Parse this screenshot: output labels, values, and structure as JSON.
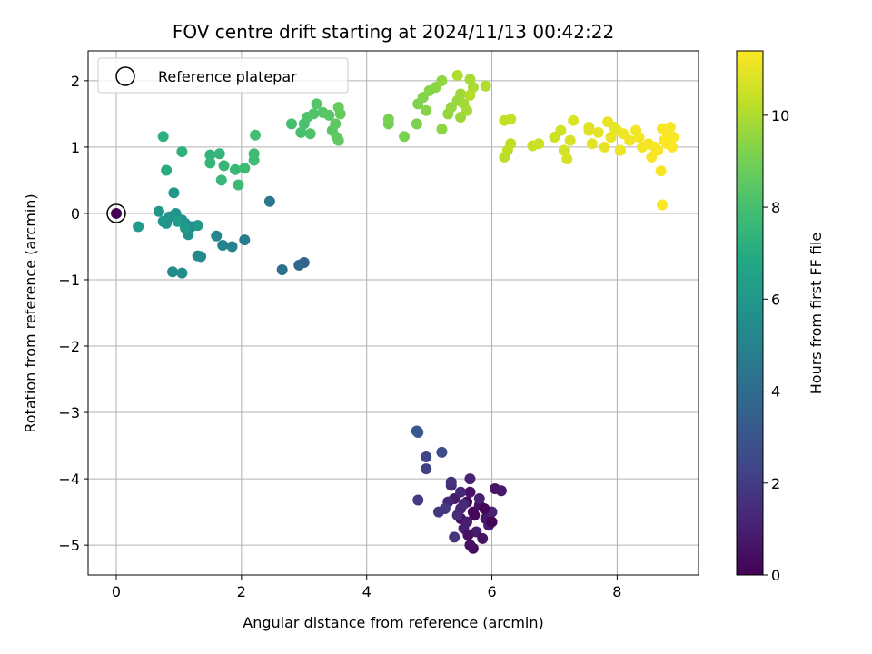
{
  "chart_data": {
    "type": "scatter",
    "title": "FOV centre drift starting at 2024/11/13 00:42:22",
    "xlabel": "Angular distance from reference (arcmin)",
    "ylabel": "Rotation from reference (arcmin)",
    "colorbar_label": "Hours from first FF file",
    "xlim": [
      -0.45,
      9.3
    ],
    "ylim": [
      -5.45,
      2.45
    ],
    "xticks": [
      0,
      2,
      4,
      6,
      8
    ],
    "yticks": [
      -5,
      -4,
      -3,
      -2,
      -1,
      0,
      1,
      2
    ],
    "colorbar_range": [
      0,
      11.4
    ],
    "colorbar_ticks": [
      0,
      2,
      4,
      6,
      8,
      10
    ],
    "colormap": "viridis",
    "grid": true,
    "legend": {
      "placement": "upper-left",
      "entries": [
        {
          "label": "Reference platepar",
          "marker": "open-circle"
        }
      ]
    },
    "reference_point": {
      "x": 0,
      "y": 0,
      "t": 0
    },
    "points": [
      {
        "x": 5.6,
        "y": -4.35,
        "t": 0.2
      },
      {
        "x": 5.7,
        "y": -4.5,
        "t": 0.3
      },
      {
        "x": 5.5,
        "y": -4.6,
        "t": 0.4
      },
      {
        "x": 5.8,
        "y": -4.4,
        "t": 0.5
      },
      {
        "x": 5.65,
        "y": -4.2,
        "t": 0.6
      },
      {
        "x": 5.9,
        "y": -4.6,
        "t": 0.7
      },
      {
        "x": 5.4,
        "y": -4.3,
        "t": 0.8
      },
      {
        "x": 5.75,
        "y": -4.8,
        "t": 0.9
      },
      {
        "x": 5.55,
        "y": -4.75,
        "t": 1.0
      },
      {
        "x": 6.0,
        "y": -4.5,
        "t": 1.1
      },
      {
        "x": 5.7,
        "y": -5.05,
        "t": 0.35
      },
      {
        "x": 5.65,
        "y": -5.0,
        "t": 0.45
      },
      {
        "x": 5.85,
        "y": -4.9,
        "t": 0.55
      },
      {
        "x": 5.5,
        "y": -4.45,
        "t": 1.2
      },
      {
        "x": 5.3,
        "y": -4.35,
        "t": 1.3
      },
      {
        "x": 5.35,
        "y": -4.1,
        "t": 1.4
      },
      {
        "x": 5.45,
        "y": -4.55,
        "t": 1.5
      },
      {
        "x": 6.05,
        "y": -4.15,
        "t": 0.65
      },
      {
        "x": 6.15,
        "y": -4.18,
        "t": 0.75
      },
      {
        "x": 5.95,
        "y": -4.7,
        "t": 0.85
      },
      {
        "x": 5.6,
        "y": -4.65,
        "t": 0.95
      },
      {
        "x": 5.8,
        "y": -4.3,
        "t": 1.05
      },
      {
        "x": 5.35,
        "y": -4.05,
        "t": 1.6
      },
      {
        "x": 5.4,
        "y": -4.88,
        "t": 1.7
      },
      {
        "x": 5.15,
        "y": -4.5,
        "t": 1.8
      },
      {
        "x": 5.25,
        "y": -4.45,
        "t": 1.9
      },
      {
        "x": 5.65,
        "y": -4.0,
        "t": 1.15
      },
      {
        "x": 5.5,
        "y": -4.2,
        "t": 1.25
      },
      {
        "x": 5.55,
        "y": -4.38,
        "t": 1.35
      },
      {
        "x": 5.72,
        "y": -4.55,
        "t": 0.25
      },
      {
        "x": 5.88,
        "y": -4.45,
        "t": 0.15
      },
      {
        "x": 6.0,
        "y": -4.65,
        "t": 0.1
      },
      {
        "x": 5.62,
        "y": -4.85,
        "t": 0.5
      },
      {
        "x": 4.82,
        "y": -4.32,
        "t": 2.0
      },
      {
        "x": 4.95,
        "y": -3.85,
        "t": 2.2
      },
      {
        "x": 4.95,
        "y": -3.67,
        "t": 2.4
      },
      {
        "x": 5.2,
        "y": -3.6,
        "t": 2.6
      },
      {
        "x": 4.8,
        "y": -3.28,
        "t": 3.0
      },
      {
        "x": 4.82,
        "y": -3.3,
        "t": 3.2
      },
      {
        "x": 3.0,
        "y": -0.74,
        "t": 3.6
      },
      {
        "x": 2.92,
        "y": -0.78,
        "t": 3.8
      },
      {
        "x": 2.65,
        "y": -0.85,
        "t": 4.2
      },
      {
        "x": 2.45,
        "y": 0.18,
        "t": 4.5
      },
      {
        "x": 2.05,
        "y": -0.4,
        "t": 4.8
      },
      {
        "x": 1.85,
        "y": -0.5,
        "t": 5.0
      },
      {
        "x": 1.7,
        "y": -0.48,
        "t": 5.1
      },
      {
        "x": 1.6,
        "y": -0.34,
        "t": 5.2
      },
      {
        "x": 1.35,
        "y": -0.65,
        "t": 5.3
      },
      {
        "x": 1.3,
        "y": -0.64,
        "t": 5.4
      },
      {
        "x": 1.05,
        "y": -0.9,
        "t": 5.5
      },
      {
        "x": 0.9,
        "y": -0.88,
        "t": 5.55
      },
      {
        "x": 1.2,
        "y": -0.2,
        "t": 5.6
      },
      {
        "x": 1.15,
        "y": -0.32,
        "t": 5.65
      },
      {
        "x": 1.1,
        "y": -0.15,
        "t": 5.7
      },
      {
        "x": 1.05,
        "y": -0.1,
        "t": 5.75
      },
      {
        "x": 0.95,
        "y": 0.0,
        "t": 5.8
      },
      {
        "x": 0.85,
        "y": -0.05,
        "t": 5.85
      },
      {
        "x": 0.8,
        "y": -0.15,
        "t": 5.9
      },
      {
        "x": 0.75,
        "y": -0.12,
        "t": 5.95
      },
      {
        "x": 0.68,
        "y": 0.03,
        "t": 6.0
      },
      {
        "x": 1.3,
        "y": -0.18,
        "t": 6.05
      },
      {
        "x": 0.92,
        "y": 0.31,
        "t": 6.1
      },
      {
        "x": 0.35,
        "y": -0.2,
        "t": 6.15
      },
      {
        "x": 1.1,
        "y": -0.22,
        "t": 6.2
      },
      {
        "x": 0.98,
        "y": -0.12,
        "t": 6.25
      },
      {
        "x": 0.8,
        "y": 0.65,
        "t": 7.0
      },
      {
        "x": 0.75,
        "y": 1.16,
        "t": 7.2
      },
      {
        "x": 1.05,
        "y": 0.93,
        "t": 7.3
      },
      {
        "x": 1.5,
        "y": 0.88,
        "t": 7.4
      },
      {
        "x": 1.65,
        "y": 0.9,
        "t": 7.45
      },
      {
        "x": 1.5,
        "y": 0.76,
        "t": 7.5
      },
      {
        "x": 1.72,
        "y": 0.72,
        "t": 7.55
      },
      {
        "x": 1.68,
        "y": 0.5,
        "t": 7.6
      },
      {
        "x": 1.9,
        "y": 0.66,
        "t": 7.65
      },
      {
        "x": 1.95,
        "y": 0.43,
        "t": 7.7
      },
      {
        "x": 2.05,
        "y": 0.68,
        "t": 7.75
      },
      {
        "x": 2.2,
        "y": 0.8,
        "t": 7.8
      },
      {
        "x": 2.2,
        "y": 0.9,
        "t": 7.85
      },
      {
        "x": 2.22,
        "y": 1.18,
        "t": 7.9
      },
      {
        "x": 2.8,
        "y": 1.35,
        "t": 8.0
      },
      {
        "x": 2.95,
        "y": 1.22,
        "t": 8.05
      },
      {
        "x": 3.0,
        "y": 1.35,
        "t": 8.1
      },
      {
        "x": 3.05,
        "y": 1.45,
        "t": 8.15
      },
      {
        "x": 3.1,
        "y": 1.2,
        "t": 8.2
      },
      {
        "x": 3.15,
        "y": 1.5,
        "t": 8.25
      },
      {
        "x": 3.2,
        "y": 1.65,
        "t": 8.3
      },
      {
        "x": 3.3,
        "y": 1.52,
        "t": 8.35
      },
      {
        "x": 3.4,
        "y": 1.48,
        "t": 8.4
      },
      {
        "x": 3.45,
        "y": 1.25,
        "t": 8.45
      },
      {
        "x": 3.5,
        "y": 1.35,
        "t": 8.5
      },
      {
        "x": 3.52,
        "y": 1.15,
        "t": 8.55
      },
      {
        "x": 3.55,
        "y": 1.1,
        "t": 8.6
      },
      {
        "x": 3.58,
        "y": 1.5,
        "t": 8.65
      },
      {
        "x": 3.55,
        "y": 1.6,
        "t": 8.7
      },
      {
        "x": 4.35,
        "y": 1.35,
        "t": 9.0
      },
      {
        "x": 4.35,
        "y": 1.42,
        "t": 9.05
      },
      {
        "x": 4.6,
        "y": 1.16,
        "t": 9.1
      },
      {
        "x": 4.8,
        "y": 1.35,
        "t": 9.15
      },
      {
        "x": 4.82,
        "y": 1.65,
        "t": 9.2
      },
      {
        "x": 4.9,
        "y": 1.75,
        "t": 9.25
      },
      {
        "x": 4.95,
        "y": 1.55,
        "t": 9.3
      },
      {
        "x": 5.0,
        "y": 1.85,
        "t": 9.35
      },
      {
        "x": 5.1,
        "y": 1.9,
        "t": 9.4
      },
      {
        "x": 5.2,
        "y": 1.27,
        "t": 9.45
      },
      {
        "x": 5.2,
        "y": 2.0,
        "t": 9.5
      },
      {
        "x": 5.3,
        "y": 1.5,
        "t": 9.55
      },
      {
        "x": 5.35,
        "y": 1.6,
        "t": 9.6
      },
      {
        "x": 5.45,
        "y": 1.7,
        "t": 9.65
      },
      {
        "x": 5.5,
        "y": 1.45,
        "t": 9.7
      },
      {
        "x": 5.5,
        "y": 1.8,
        "t": 9.75
      },
      {
        "x": 5.55,
        "y": 1.65,
        "t": 9.8
      },
      {
        "x": 5.6,
        "y": 1.55,
        "t": 9.85
      },
      {
        "x": 5.65,
        "y": 2.02,
        "t": 9.9
      },
      {
        "x": 5.7,
        "y": 1.9,
        "t": 9.95
      },
      {
        "x": 5.45,
        "y": 2.08,
        "t": 10.0
      },
      {
        "x": 5.9,
        "y": 1.92,
        "t": 10.05
      },
      {
        "x": 5.65,
        "y": 1.78,
        "t": 10.1
      },
      {
        "x": 6.2,
        "y": 0.85,
        "t": 10.2
      },
      {
        "x": 6.25,
        "y": 0.95,
        "t": 10.25
      },
      {
        "x": 6.3,
        "y": 1.05,
        "t": 10.3
      },
      {
        "x": 6.2,
        "y": 1.4,
        "t": 10.35
      },
      {
        "x": 6.3,
        "y": 1.42,
        "t": 10.4
      },
      {
        "x": 6.65,
        "y": 1.02,
        "t": 10.45
      },
      {
        "x": 6.75,
        "y": 1.05,
        "t": 10.5
      },
      {
        "x": 7.0,
        "y": 1.15,
        "t": 10.55
      },
      {
        "x": 7.1,
        "y": 1.25,
        "t": 10.6
      },
      {
        "x": 7.15,
        "y": 0.95,
        "t": 10.65
      },
      {
        "x": 7.2,
        "y": 0.82,
        "t": 10.7
      },
      {
        "x": 7.25,
        "y": 1.1,
        "t": 10.75
      },
      {
        "x": 7.3,
        "y": 1.4,
        "t": 10.8
      },
      {
        "x": 7.55,
        "y": 1.3,
        "t": 10.85
      },
      {
        "x": 7.6,
        "y": 1.05,
        "t": 10.9
      },
      {
        "x": 7.7,
        "y": 1.22,
        "t": 10.95
      },
      {
        "x": 7.8,
        "y": 1.0,
        "t": 11.0
      },
      {
        "x": 7.85,
        "y": 1.38,
        "t": 11.02
      },
      {
        "x": 7.9,
        "y": 1.15,
        "t": 11.05
      },
      {
        "x": 8.0,
        "y": 1.25,
        "t": 11.08
      },
      {
        "x": 8.05,
        "y": 0.95,
        "t": 11.1
      },
      {
        "x": 8.1,
        "y": 1.2,
        "t": 11.12
      },
      {
        "x": 8.2,
        "y": 1.1,
        "t": 11.15
      },
      {
        "x": 8.3,
        "y": 1.25,
        "t": 11.18
      },
      {
        "x": 8.35,
        "y": 1.15,
        "t": 11.2
      },
      {
        "x": 8.4,
        "y": 1.0,
        "t": 11.22
      },
      {
        "x": 8.5,
        "y": 1.05,
        "t": 11.25
      },
      {
        "x": 8.55,
        "y": 0.85,
        "t": 11.27
      },
      {
        "x": 8.6,
        "y": 1.0,
        "t": 11.28
      },
      {
        "x": 8.65,
        "y": 0.95,
        "t": 11.3
      },
      {
        "x": 8.7,
        "y": 0.64,
        "t": 11.31
      },
      {
        "x": 8.72,
        "y": 1.28,
        "t": 11.32
      },
      {
        "x": 8.75,
        "y": 1.1,
        "t": 11.33
      },
      {
        "x": 8.8,
        "y": 1.15,
        "t": 11.34
      },
      {
        "x": 8.85,
        "y": 1.3,
        "t": 11.35
      },
      {
        "x": 8.88,
        "y": 1.0,
        "t": 11.36
      },
      {
        "x": 8.9,
        "y": 1.15,
        "t": 11.37
      },
      {
        "x": 8.72,
        "y": 0.13,
        "t": 11.38
      },
      {
        "x": 8.8,
        "y": 1.05,
        "t": 11.39
      },
      {
        "x": 7.95,
        "y": 1.3,
        "t": 10.98
      },
      {
        "x": 7.55,
        "y": 1.25,
        "t": 10.88
      }
    ]
  }
}
